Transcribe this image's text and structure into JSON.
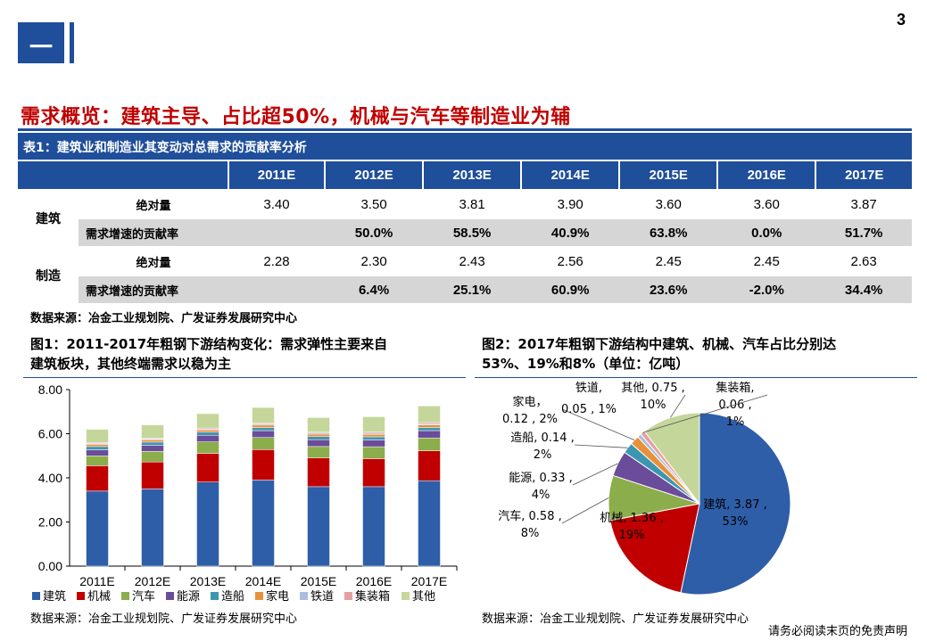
{
  "page": {
    "section_marker": "一",
    "page_number": "3",
    "headline": "需求概览：建筑主导、占比超50%，机械与汽车等制造业为辅",
    "disclaimer": "请务必阅读末页的免责声明"
  },
  "table": {
    "caption": "表1：建筑业和制造业其变动对总需求的贡献率分析",
    "years": [
      "2011E",
      "2012E",
      "2013E",
      "2014E",
      "2015E",
      "2016E",
      "2017E"
    ],
    "groups": [
      {
        "name": "建筑",
        "rows": [
          {
            "metric": "绝对量",
            "values": [
              "3.40",
              "3.50",
              "3.81",
              "3.90",
              "3.60",
              "3.60",
              "3.87"
            ]
          },
          {
            "metric": "需求增速的贡献率",
            "values": [
              "",
              "50.0%",
              "58.5%",
              "40.9%",
              "63.8%",
              "0.0%",
              "51.7%"
            ]
          }
        ]
      },
      {
        "name": "制造",
        "rows": [
          {
            "metric": "绝对量",
            "values": [
              "2.28",
              "2.30",
              "2.43",
              "2.56",
              "2.45",
              "2.45",
              "2.63"
            ]
          },
          {
            "metric": "需求增速的贡献率",
            "values": [
              "",
              "6.4%",
              "25.1%",
              "60.9%",
              "23.6%",
              "-2.0%",
              "34.4%"
            ]
          }
        ]
      }
    ],
    "source": "数据来源：冶金工业规划院、广发证券发展研究中心"
  },
  "figure1": {
    "title_line1": "图1：2011-2017年粗钢下游结构变化：需求弹性主要来自",
    "title_line2": "建筑板块，其他终端需求以稳为主",
    "source": "数据来源：冶金工业规划院、广发证券发展研究中心"
  },
  "figure2": {
    "title_line1": "图2：2017年粗钢下游结构中建筑、机械、汽车占比分别达",
    "title_line2": "53%、19%和8%（单位：亿吨）",
    "source": "数据来源：冶金工业规划院、广发证券发展研究中心"
  },
  "colors": {
    "建筑": "#2e5ea8",
    "机械": "#c00000",
    "汽车": "#8cad4b",
    "能源": "#6b4c9a",
    "造船": "#3d96b0",
    "家电": "#e8913a",
    "铁道": "#a9bedf",
    "集装箱": "#e5a0a0",
    "其他": "#c5d69b"
  },
  "chart_data": [
    {
      "type": "bar",
      "stacked": true,
      "categories": [
        "2011E",
        "2012E",
        "2013E",
        "2014E",
        "2015E",
        "2016E",
        "2017E"
      ],
      "series": [
        {
          "name": "建筑",
          "values": [
            3.4,
            3.5,
            3.81,
            3.9,
            3.6,
            3.6,
            3.87
          ]
        },
        {
          "name": "机械",
          "values": [
            1.15,
            1.22,
            1.3,
            1.38,
            1.3,
            1.27,
            1.36
          ]
        },
        {
          "name": "汽车",
          "values": [
            0.45,
            0.48,
            0.52,
            0.55,
            0.52,
            0.54,
            0.58
          ]
        },
        {
          "name": "能源",
          "values": [
            0.27,
            0.28,
            0.3,
            0.31,
            0.31,
            0.31,
            0.33
          ]
        },
        {
          "name": "造船",
          "values": [
            0.15,
            0.14,
            0.14,
            0.14,
            0.14,
            0.14,
            0.14
          ]
        },
        {
          "name": "家电",
          "values": [
            0.1,
            0.1,
            0.1,
            0.11,
            0.11,
            0.11,
            0.12
          ]
        },
        {
          "name": "铁道",
          "values": [
            0.04,
            0.04,
            0.04,
            0.05,
            0.05,
            0.05,
            0.05
          ]
        },
        {
          "name": "集装箱",
          "values": [
            0.04,
            0.04,
            0.05,
            0.05,
            0.04,
            0.05,
            0.06
          ]
        },
        {
          "name": "其他",
          "values": [
            0.6,
            0.6,
            0.65,
            0.7,
            0.66,
            0.7,
            0.75
          ]
        }
      ],
      "ylim": [
        0,
        8
      ],
      "yticks": [
        "0.00",
        "2.00",
        "4.00",
        "6.00",
        "8.00"
      ],
      "grid": false,
      "legend": "bottom"
    },
    {
      "type": "pie",
      "slices": [
        {
          "name": "建筑",
          "value": 3.87,
          "value_label": "3.87",
          "pct": "53%"
        },
        {
          "name": "机械",
          "value": 1.36,
          "value_label": "1.36",
          "pct": "19%"
        },
        {
          "name": "汽车",
          "value": 0.58,
          "value_label": "0.58",
          "pct": "8%"
        },
        {
          "name": "能源",
          "value": 0.33,
          "value_label": "0.33",
          "pct": "4%"
        },
        {
          "name": "造船",
          "value": 0.14,
          "value_label": "0.14",
          "pct": "2%"
        },
        {
          "name": "家电",
          "value": 0.12,
          "value_label": "0.12",
          "pct": "2%"
        },
        {
          "name": "铁道",
          "value": 0.05,
          "value_label": "0.05",
          "pct": "1%"
        },
        {
          "name": "集装箱",
          "value": 0.06,
          "value_label": "0.06",
          "pct": "1%"
        },
        {
          "name": "其他",
          "value": 0.75,
          "value_label": "0.75",
          "pct": "10%"
        }
      ]
    }
  ]
}
